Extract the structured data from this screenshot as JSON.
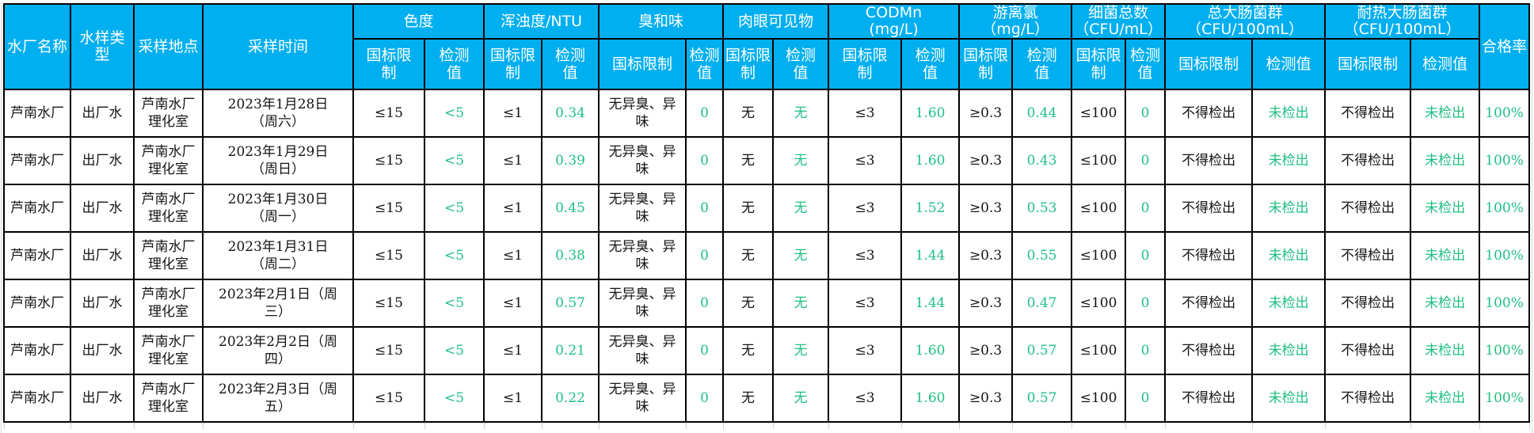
{
  "page": {
    "header_bg": "#00AFEF",
    "header_text_color": "#ffffff",
    "ok_color": "#1FBF82",
    "text_color": "#141414",
    "border_color": "#000000"
  },
  "table": {
    "fixed_headers": [
      "水厂名称",
      "水样类型",
      "采样地点",
      "采样时间"
    ],
    "groups": [
      {
        "label": "色度",
        "unit": ""
      },
      {
        "label": "浑浊度/NTU",
        "unit": ""
      },
      {
        "label": "臭和味",
        "unit": ""
      },
      {
        "label": "肉眼可见物",
        "unit": ""
      },
      {
        "label": "CODMn",
        "unit": "(mg/L)"
      },
      {
        "label": "游离氯",
        "unit": "（mg/L）"
      },
      {
        "label": "细菌总数",
        "unit": "（CFU/mL）"
      },
      {
        "label": "总大肠菌群",
        "unit": "（CFU/100mL）"
      },
      {
        "label": "耐热大肠菌群",
        "unit": "（CFU/100mL）"
      }
    ],
    "sub_headers": {
      "limit": "国标限制",
      "value": "检测值"
    },
    "rate_header": "合格率",
    "green_value_columns": [
      5,
      7,
      9,
      11,
      13,
      15,
      17,
      19,
      21,
      22
    ],
    "rows": [
      [
        "芦南水厂",
        "出厂水",
        "芦南水厂理化室",
        "2023年1月28日（周六）",
        "≤15",
        "<5",
        "≤1",
        "0.34",
        "无异臭、异味",
        "0",
        "无",
        "无",
        "≤3",
        "1.60",
        "≥0.3",
        "0.44",
        "≤100",
        "0",
        "不得检出",
        "未检出",
        "不得检出",
        "未检出",
        "100%"
      ],
      [
        "芦南水厂",
        "出厂水",
        "芦南水厂理化室",
        "2023年1月29日（周日）",
        "≤15",
        "<5",
        "≤1",
        "0.39",
        "无异臭、异味",
        "0",
        "无",
        "无",
        "≤3",
        "1.60",
        "≥0.3",
        "0.43",
        "≤100",
        "0",
        "不得检出",
        "未检出",
        "不得检出",
        "未检出",
        "100%"
      ],
      [
        "芦南水厂",
        "出厂水",
        "芦南水厂理化室",
        "2023年1月30日（周一）",
        "≤15",
        "<5",
        "≤1",
        "0.45",
        "无异臭、异味",
        "0",
        "无",
        "无",
        "≤3",
        "1.52",
        "≥0.3",
        "0.53",
        "≤100",
        "0",
        "不得检出",
        "未检出",
        "不得检出",
        "未检出",
        "100%"
      ],
      [
        "芦南水厂",
        "出厂水",
        "芦南水厂理化室",
        "2023年1月31日（周二）",
        "≤15",
        "<5",
        "≤1",
        "0.38",
        "无异臭、异味",
        "0",
        "无",
        "无",
        "≤3",
        "1.44",
        "≥0.3",
        "0.55",
        "≤100",
        "0",
        "不得检出",
        "未检出",
        "不得检出",
        "未检出",
        "100%"
      ],
      [
        "芦南水厂",
        "出厂水",
        "芦南水厂理化室",
        "2023年2月1日（周三）",
        "≤15",
        "<5",
        "≤1",
        "0.57",
        "无异臭、异味",
        "0",
        "无",
        "无",
        "≤3",
        "1.44",
        "≥0.3",
        "0.47",
        "≤100",
        "0",
        "不得检出",
        "未检出",
        "不得检出",
        "未检出",
        "100%"
      ],
      [
        "芦南水厂",
        "出厂水",
        "芦南水厂理化室",
        "2023年2月2日（周四）",
        "≤15",
        "<5",
        "≤1",
        "0.21",
        "无异臭、异味",
        "0",
        "无",
        "无",
        "≤3",
        "1.60",
        "≥0.3",
        "0.57",
        "≤100",
        "0",
        "不得检出",
        "未检出",
        "不得检出",
        "未检出",
        "100%"
      ],
      [
        "芦南水厂",
        "出厂水",
        "芦南水厂理化室",
        "2023年2月3日（周五）",
        "≤15",
        "<5",
        "≤1",
        "0.22",
        "无异臭、异味",
        "0",
        "无",
        "无",
        "≤3",
        "1.60",
        "≥0.3",
        "0.57",
        "≤100",
        "0",
        "不得检出",
        "未检出",
        "不得检出",
        "未检出",
        "100%"
      ]
    ]
  }
}
